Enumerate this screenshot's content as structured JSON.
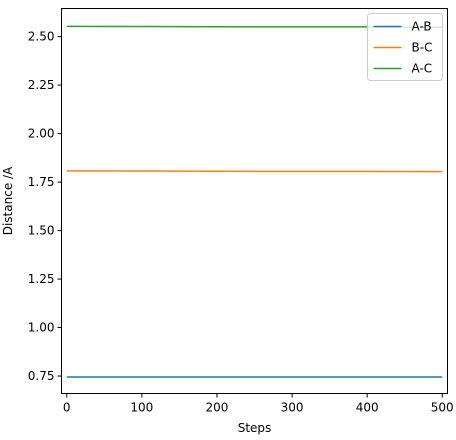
{
  "chart_data": {
    "type": "line",
    "title": "",
    "xlabel": "Steps",
    "ylabel": "Distance /A",
    "xlim": [
      -7,
      507
    ],
    "ylim": [
      0.66,
      2.645
    ],
    "x_ticks": [
      0,
      100,
      200,
      300,
      400,
      500
    ],
    "x_tick_labels": [
      "0",
      "100",
      "200",
      "300",
      "400",
      "500"
    ],
    "y_ticks": [
      0.75,
      1.0,
      1.25,
      1.5,
      1.75,
      2.0,
      2.25,
      2.5
    ],
    "y_tick_labels": [
      "0.75",
      "1.00",
      "1.25",
      "1.50",
      "1.75",
      "2.00",
      "2.25",
      "2.50"
    ],
    "grid": false,
    "legend_position": "top-right",
    "x": [
      0,
      100,
      200,
      300,
      400,
      500
    ],
    "series": [
      {
        "name": "A-B",
        "color": "#1f77b4",
        "values": [
          0.745,
          0.745,
          0.745,
          0.745,
          0.745,
          0.745
        ]
      },
      {
        "name": "B-C",
        "color": "#ff7f0e",
        "values": [
          1.808,
          1.807,
          1.806,
          1.805,
          1.805,
          1.804
        ]
      },
      {
        "name": "A-C",
        "color": "#2ca02c",
        "values": [
          2.553,
          2.552,
          2.551,
          2.55,
          2.55,
          2.549
        ]
      }
    ]
  }
}
